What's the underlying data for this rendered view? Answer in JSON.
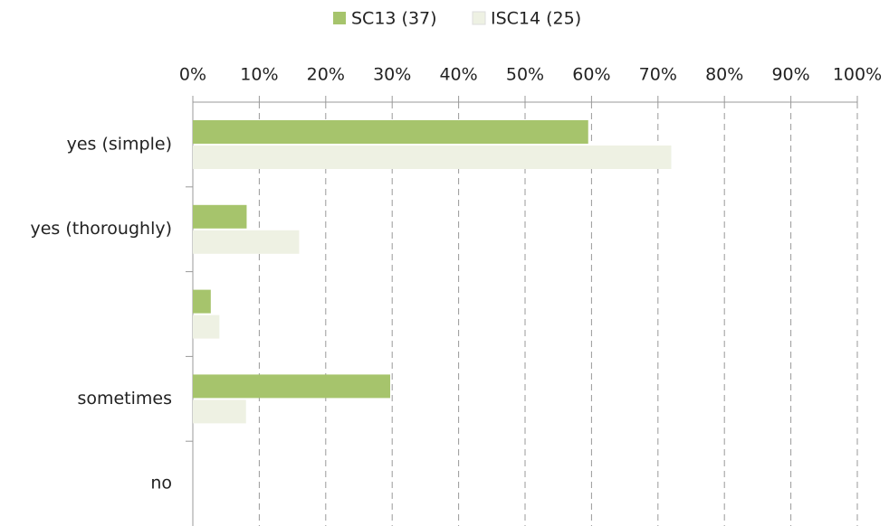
{
  "chart_data": {
    "type": "hbar",
    "categories": [
      "yes (simple)",
      "yes (thoroughly)",
      null,
      "sometimes",
      "no"
    ],
    "series": [
      {
        "name": "SC13 (37)",
        "color": "#a6c46c",
        "values": [
          59.5,
          8.1,
          2.7,
          29.7,
          0
        ]
      },
      {
        "name": "ISC14 (25)",
        "color": "#eef1e3",
        "values": [
          72,
          16,
          4,
          8,
          0
        ]
      }
    ],
    "xlim": [
      0,
      100
    ],
    "xticks": [
      {
        "value": 0,
        "label": "0%"
      },
      {
        "value": 10,
        "label": "10%"
      },
      {
        "value": 20,
        "label": "20%"
      },
      {
        "value": 30,
        "label": "30%"
      },
      {
        "value": 40,
        "label": "40%"
      },
      {
        "value": 50,
        "label": "50%"
      },
      {
        "value": 60,
        "label": "60%"
      },
      {
        "value": 70,
        "label": "70%"
      },
      {
        "value": 80,
        "label": "80%"
      },
      {
        "value": 90,
        "label": "90%"
      },
      {
        "value": 100,
        "label": "100%"
      }
    ],
    "grid": true,
    "legend": "top"
  }
}
